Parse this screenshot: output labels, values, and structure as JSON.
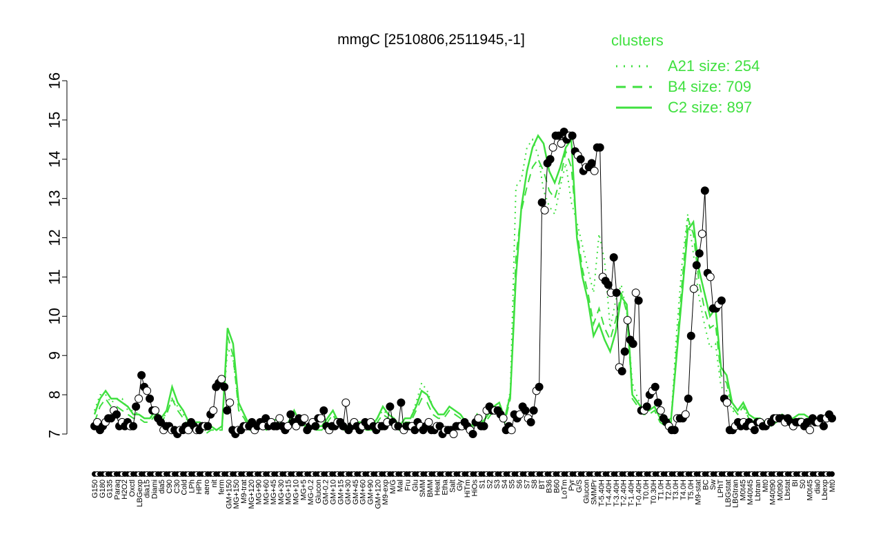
{
  "colors": {
    "cluster": "#3fe03f",
    "data": "#000000",
    "background": "#ffffff"
  },
  "chart_data": {
    "type": "line",
    "title": "mmgC [2510806,2511945,-1]",
    "xlabel": "",
    "ylabel": "",
    "ylim": [
      7,
      16
    ],
    "yticks": [
      "7",
      "8",
      "9",
      "10",
      "11",
      "12",
      "13",
      "14",
      "15",
      "16"
    ],
    "grid": false,
    "legend": {
      "title": "clusters",
      "position": "top-right",
      "entries": [
        {
          "label": "A21 size: 254",
          "style": "dotted"
        },
        {
          "label": "B4 size: 709",
          "style": "dashed"
        },
        {
          "label": "C2 size: 897",
          "style": "solid"
        }
      ]
    },
    "tick_labels": [
      "G150",
      "G180",
      "G135",
      "Paraq",
      "H2O2",
      "Oxctl",
      "LBGexp",
      "dia15",
      "Diami",
      "dia5",
      "C90",
      "C30",
      "Cold",
      "LPh",
      "HPh",
      "aero",
      "nit",
      "ferm",
      "GM+150",
      "MG+150",
      "M9-trat",
      "MG+120",
      "MG+90",
      "MG+60",
      "MG+45",
      "MG+30",
      "MG+15",
      "MG+10",
      "MG+5",
      "MG-0.2",
      "Glucon",
      "GM-0.2",
      "GM+10",
      "GM+15",
      "GM+30",
      "GM+45",
      "GM+60",
      "GM+90",
      "GM+120",
      "M9-exp",
      "M/G",
      "Mal",
      "Fru",
      "Glu",
      "SMM",
      "BMM",
      "Heat",
      "Etha",
      "Salt",
      "Gly",
      "HiTm",
      "HiOs",
      "S1",
      "S2",
      "S3",
      "S4",
      "S5",
      "S6",
      "S7",
      "S8",
      "BT",
      "B36",
      "B60",
      "LoTm",
      "Pyr",
      "G/S",
      "Glucon",
      "SMMPr",
      "T-5.40H",
      "T-4.40H",
      "T-3.40H",
      "T-2.40H",
      "T-1.40H",
      "T-0.40H",
      "T0.0H",
      "T0.30H",
      "T1.0H",
      "T2.0H",
      "T3.0H",
      "T4.0H",
      "T5.0H",
      "M9-stat",
      "BC",
      "Sw",
      "LPhT",
      "LBGstat",
      "LBGtran",
      "M0t45",
      "M40t45",
      "Lbtran",
      "Mt0",
      "M40t90",
      "M0t90",
      "Lbstat",
      "BI",
      "S0",
      "M0t45",
      "dia0",
      "Lbexp",
      "Mt0"
    ],
    "points_y": [
      7.2,
      7.3,
      7.1,
      7.2,
      7.3,
      7.4,
      7.4,
      7.6,
      7.5,
      7.2,
      7.3,
      7.2,
      7.3,
      7.2,
      7.2,
      7.7,
      7.9,
      8.5,
      8.2,
      8.1,
      7.9,
      7.6,
      7.6,
      7.4,
      7.3,
      7.1,
      7.2,
      7.2,
      7.1,
      7.1,
      7.0,
      7.1,
      7.1,
      7.2,
      7.1,
      7.3,
      7.2,
      7.1,
      7.1,
      7.2,
      7.2,
      7.2,
      7.5,
      7.6,
      8.2,
      8.3,
      8.4,
      8.2,
      7.6,
      7.8,
      7.1,
      7.0,
      7.1,
      7.1,
      7.2,
      7.2,
      7.2,
      7.3,
      7.1,
      7.2,
      7.3,
      7.2,
      7.4,
      7.2,
      7.3,
      7.2,
      7.2,
      7.4,
      7.2,
      7.1,
      7.2,
      7.5,
      7.3,
      7.2,
      7.4,
      7.3,
      7.4,
      7.1,
      7.2,
      7.3,
      7.2,
      7.4,
      7.4,
      7.6,
      7.2,
      7.1,
      7.2,
      7.2,
      7.3,
      7.3,
      7.2,
      7.8,
      7.1,
      7.2,
      7.3,
      7.2,
      7.1,
      7.2,
      7.3,
      7.2,
      7.3,
      7.2,
      7.1,
      7.2,
      7.2,
      7.2,
      7.3,
      7.7,
      7.3,
      7.2,
      7.2,
      7.8,
      7.1,
      7.2,
      7.2,
      7.2,
      7.1,
      7.3,
      7.2,
      7.1,
      7.2,
      7.3,
      7.1,
      7.1,
      7.2,
      7.2,
      7.0,
      7.1,
      7.1,
      7.1,
      7.0,
      7.2,
      7.2,
      7.2,
      7.3,
      7.2,
      7.1,
      7.0,
      7.3,
      7.4,
      7.2,
      7.2,
      7.6,
      7.7,
      7.6,
      7.6,
      7.6,
      7.5,
      7.4,
      7.1,
      7.2,
      7.1,
      7.5,
      7.4,
      7.5,
      7.7,
      7.6,
      7.4,
      7.3,
      7.6,
      8.1,
      8.2,
      12.9,
      12.7,
      13.9,
      14.0,
      14.3,
      14.6,
      14.6,
      14.4,
      14.7,
      14.5,
      14.6,
      14.6,
      14.2,
      14.1,
      14.0,
      13.7,
      13.8,
      13.8,
      13.9,
      13.7,
      14.3,
      14.3,
      11.0,
      10.9,
      10.8,
      10.6,
      11.5,
      10.6,
      8.7,
      8.6,
      9.1,
      9.9,
      9.4,
      9.3,
      10.6,
      10.4,
      7.6,
      7.6,
      7.7,
      8.0,
      8.1,
      8.2,
      7.8,
      7.6,
      7.4,
      7.3,
      7.2,
      7.1,
      7.1,
      7.4,
      7.4,
      7.4,
      7.5,
      7.9,
      9.5,
      10.7,
      11.3,
      11.6,
      12.1,
      13.2,
      11.1,
      11.0,
      10.2,
      10.2,
      10.3,
      10.4,
      7.9,
      7.8,
      7.1,
      7.1,
      7.2,
      7.3,
      7.2,
      7.3,
      7.2,
      7.3,
      7.2,
      7.1,
      7.3,
      7.3,
      7.2,
      7.2,
      7.3,
      7.3,
      7.4,
      7.4,
      7.4,
      7.4,
      7.3,
      7.4,
      7.3,
      7.2,
      7.3,
      7.3,
      7.3,
      7.2,
      7.3,
      7.1,
      7.4,
      7.3,
      7.3,
      7.4,
      7.2,
      7.4,
      7.5,
      7.4
    ],
    "series": [
      {
        "style": "solid",
        "values": [
          7.5,
          7.9,
          8.1,
          7.9,
          7.9,
          7.8,
          7.7,
          7.5,
          7.5,
          7.4,
          7.4,
          7.6,
          7.4,
          7.6,
          8.2,
          7.8,
          7.6,
          7.3,
          7.3,
          7.3,
          7.1,
          7.2,
          7.1,
          7.2,
          9.7,
          9.3,
          7.8,
          7.5,
          7.2,
          7.2,
          7.3,
          7.2,
          7.3,
          7.4,
          7.2,
          7.3,
          7.6,
          7.3,
          7.2,
          7.3,
          7.2,
          7.2,
          7.4,
          7.6,
          7.3,
          7.2,
          7.2,
          7.3,
          7.3,
          7.2,
          7.2,
          7.4,
          7.7,
          7.5,
          7.4,
          7.2,
          7.4,
          7.4,
          7.7,
          8.1,
          8.0,
          7.7,
          7.5,
          7.5,
          7.7,
          7.6,
          7.5,
          7.3,
          7.2,
          7.5,
          7.3,
          7.5,
          7.7,
          7.8,
          7.4,
          8.0,
          11.0,
          12.8,
          13.7,
          14.3,
          14.6,
          14.4,
          13.7,
          13.4,
          13.8,
          14.3,
          14.5,
          12.0,
          11.0,
          10.4,
          9.5,
          9.8,
          9.4,
          9.1,
          9.6,
          10.5,
          10.3,
          8.0,
          7.8,
          7.6,
          7.6,
          7.7,
          7.4,
          7.3,
          7.4,
          9.0,
          10.6,
          12.2,
          12.4,
          11.2,
          10.6,
          10.0,
          10.2,
          8.7,
          8.5,
          7.8,
          7.6,
          7.8,
          7.5,
          7.4,
          7.4,
          7.3,
          7.3,
          7.4,
          7.5,
          7.4,
          7.4,
          7.5,
          7.5,
          7.4,
          7.4,
          7.4,
          7.5,
          7.5
        ]
      },
      {
        "style": "dashed",
        "values": [
          7.3,
          7.7,
          7.9,
          7.7,
          7.7,
          7.6,
          7.5,
          7.4,
          7.4,
          7.3,
          7.3,
          7.5,
          7.3,
          7.5,
          7.9,
          7.6,
          7.4,
          7.2,
          7.2,
          7.2,
          7.0,
          7.1,
          7.1,
          7.1,
          9.5,
          9.0,
          7.6,
          7.4,
          7.1,
          7.1,
          7.2,
          7.1,
          7.2,
          7.3,
          7.1,
          7.2,
          7.5,
          7.2,
          7.1,
          7.2,
          7.1,
          7.1,
          7.3,
          7.5,
          7.2,
          7.1,
          7.1,
          7.2,
          7.2,
          7.1,
          7.1,
          7.3,
          7.5,
          7.4,
          7.3,
          7.1,
          7.3,
          7.3,
          7.6,
          7.9,
          7.8,
          7.5,
          7.4,
          7.4,
          7.6,
          7.5,
          7.4,
          7.2,
          7.1,
          7.4,
          7.2,
          7.4,
          7.6,
          7.7,
          7.3,
          7.9,
          11.5,
          12.7,
          13.3,
          13.8,
          14.0,
          13.7,
          13.2,
          13.0,
          13.5,
          14.2,
          13.8,
          12.2,
          11.2,
          10.6,
          9.8,
          10.2,
          9.7,
          9.4,
          9.9,
          10.6,
          10.1,
          7.9,
          7.7,
          7.5,
          7.5,
          7.6,
          7.3,
          7.2,
          7.3,
          9.2,
          10.9,
          12.5,
          12.1,
          10.9,
          10.2,
          9.7,
          9.8,
          8.5,
          8.3,
          7.7,
          7.5,
          7.7,
          7.4,
          7.3,
          7.3,
          7.2,
          7.2,
          7.3,
          7.4,
          7.3,
          7.3,
          7.4,
          7.4,
          7.3,
          7.3,
          7.3,
          7.4,
          7.4
        ]
      },
      {
        "style": "dotted",
        "values": [
          7.6,
          8.0,
          8.0,
          7.8,
          7.9,
          7.9,
          7.6,
          7.6,
          7.5,
          7.4,
          7.4,
          7.5,
          7.4,
          7.5,
          7.9,
          7.7,
          7.5,
          7.3,
          7.3,
          7.3,
          7.1,
          7.2,
          7.1,
          7.2,
          9.2,
          8.9,
          7.7,
          7.5,
          7.2,
          7.2,
          7.3,
          7.2,
          7.3,
          7.4,
          7.2,
          7.3,
          7.5,
          7.3,
          7.2,
          7.3,
          7.2,
          7.2,
          7.4,
          7.6,
          7.3,
          7.2,
          7.2,
          7.3,
          7.3,
          7.2,
          7.2,
          7.4,
          7.6,
          7.5,
          7.4,
          7.2,
          7.4,
          7.4,
          7.8,
          8.3,
          8.1,
          7.7,
          7.5,
          7.5,
          7.7,
          7.6,
          7.5,
          7.3,
          7.2,
          7.5,
          7.3,
          7.5,
          7.7,
          7.8,
          7.4,
          8.1,
          13.3,
          13.5,
          14.3,
          14.5,
          14.1,
          13.2,
          12.8,
          12.6,
          13.3,
          13.9,
          12.9,
          12.4,
          11.8,
          11.2,
          10.6,
          12.1,
          11.4,
          9.7,
          10.4,
          10.8,
          10.1,
          8.3,
          7.9,
          7.6,
          7.6,
          7.7,
          7.4,
          7.3,
          7.4,
          9.6,
          11.4,
          12.6,
          11.6,
          10.5,
          9.8,
          9.2,
          9.3,
          8.2,
          8.1,
          7.6,
          7.5,
          7.7,
          7.4,
          7.3,
          7.3,
          7.2,
          7.2,
          7.3,
          7.4,
          7.3,
          7.3,
          7.4,
          7.4,
          7.3,
          7.3,
          7.3,
          7.4,
          7.4
        ]
      }
    ]
  }
}
